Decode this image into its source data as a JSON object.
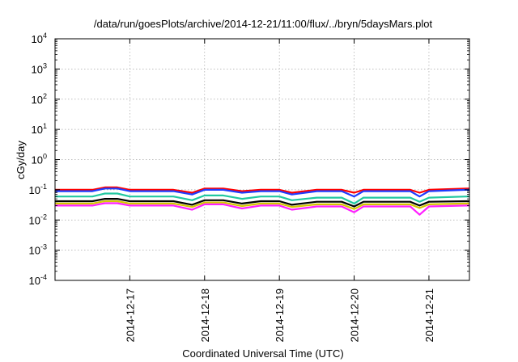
{
  "chart_data": {
    "type": "line",
    "title": "/data/run/goesPlots/archive/2014-12-21/11:00/flux/../bryn/5daysMars.plot",
    "xlabel": "Coordinated Universal Time (UTC)",
    "ylabel": "cGy/day",
    "yscale": "log",
    "ylim": [
      0.0001,
      10000
    ],
    "xlim": [
      "2014-12-16T00:00",
      "2014-12-21T13:00"
    ],
    "x_ticks": [
      "2014-12-17",
      "2014-12-18",
      "2014-12-19",
      "2014-12-20",
      "2014-12-21"
    ],
    "y_ticks": [
      {
        "base": "10",
        "exp": "4"
      },
      {
        "base": "10",
        "exp": "3"
      },
      {
        "base": "10",
        "exp": "2"
      },
      {
        "base": "10",
        "exp": "1"
      },
      {
        "base": "10",
        "exp": "0"
      },
      {
        "base": "10",
        "exp": "-1"
      },
      {
        "base": "10",
        "exp": "-2"
      },
      {
        "base": "10",
        "exp": "-3"
      },
      {
        "base": "10",
        "exp": "-4"
      }
    ],
    "grid": true,
    "x": [
      "2014-12-16T00:00",
      "2014-12-16T12:00",
      "2014-12-16T16:00",
      "2014-12-16T20:00",
      "2014-12-17T00:00",
      "2014-12-17T08:00",
      "2014-12-17T14:00",
      "2014-12-17T20:00",
      "2014-12-18T00:00",
      "2014-12-18T06:00",
      "2014-12-18T12:00",
      "2014-12-18T18:00",
      "2014-12-19T00:00",
      "2014-12-19T04:00",
      "2014-12-19T12:00",
      "2014-12-19T20:00",
      "2014-12-20T00:00",
      "2014-12-20T03:00",
      "2014-12-20T12:00",
      "2014-12-20T18:00",
      "2014-12-20T21:00",
      "2014-12-21T00:00",
      "2014-12-21T12:00",
      "2014-12-21T13:00"
    ],
    "series": [
      {
        "color": "#ff0000",
        "values": [
          0.1,
          0.1,
          0.12,
          0.12,
          0.1,
          0.1,
          0.1,
          0.08,
          0.11,
          0.11,
          0.09,
          0.1,
          0.1,
          0.08,
          0.1,
          0.1,
          0.08,
          0.1,
          0.1,
          0.1,
          0.08,
          0.1,
          0.11,
          0.11
        ]
      },
      {
        "color": "#1e3cff",
        "values": [
          0.09,
          0.09,
          0.11,
          0.11,
          0.09,
          0.09,
          0.09,
          0.07,
          0.1,
          0.1,
          0.08,
          0.09,
          0.09,
          0.07,
          0.09,
          0.09,
          0.06,
          0.09,
          0.09,
          0.09,
          0.06,
          0.09,
          0.1,
          0.1
        ]
      },
      {
        "color": "#20c8a0",
        "values": [
          0.06,
          0.06,
          0.075,
          0.075,
          0.06,
          0.06,
          0.06,
          0.045,
          0.065,
          0.065,
          0.05,
          0.06,
          0.06,
          0.045,
          0.055,
          0.055,
          0.035,
          0.055,
          0.055,
          0.055,
          0.04,
          0.055,
          0.06,
          0.06
        ]
      },
      {
        "color": "#000000",
        "values": [
          0.042,
          0.042,
          0.05,
          0.05,
          0.042,
          0.042,
          0.042,
          0.032,
          0.045,
          0.045,
          0.035,
          0.042,
          0.042,
          0.032,
          0.04,
          0.04,
          0.028,
          0.04,
          0.04,
          0.04,
          0.03,
          0.04,
          0.042,
          0.042
        ]
      },
      {
        "color": "#d4c800",
        "values": [
          0.035,
          0.035,
          0.042,
          0.042,
          0.035,
          0.035,
          0.035,
          0.027,
          0.038,
          0.038,
          0.029,
          0.035,
          0.035,
          0.027,
          0.033,
          0.033,
          0.023,
          0.033,
          0.033,
          0.033,
          0.025,
          0.033,
          0.035,
          0.035
        ]
      },
      {
        "color": "#ff20ff",
        "values": [
          0.03,
          0.03,
          0.036,
          0.036,
          0.03,
          0.03,
          0.03,
          0.022,
          0.033,
          0.033,
          0.024,
          0.03,
          0.03,
          0.022,
          0.028,
          0.028,
          0.018,
          0.028,
          0.028,
          0.028,
          0.015,
          0.028,
          0.03,
          0.03
        ]
      }
    ]
  }
}
